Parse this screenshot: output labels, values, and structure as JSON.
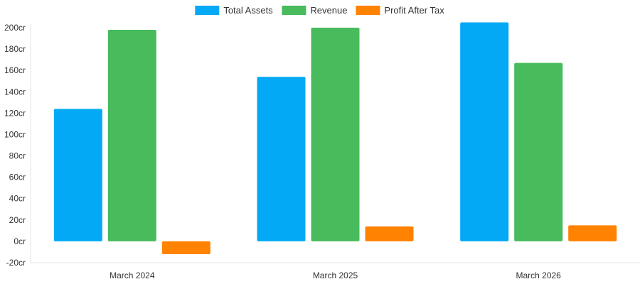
{
  "chart_data": {
    "type": "bar",
    "categories": [
      "March 2024",
      "March 2025",
      "March 2026"
    ],
    "series": [
      {
        "name": "Total Assets",
        "color": "#03A9F4",
        "values": [
          124,
          154,
          205
        ]
      },
      {
        "name": "Revenue",
        "color": "#48BB5C",
        "values": [
          198,
          200,
          167
        ]
      },
      {
        "name": "Profit After Tax",
        "color": "#FF8200",
        "values": [
          -12,
          14,
          15
        ]
      }
    ],
    "ylim": [
      -20,
      200
    ],
    "y_ticks": [
      {
        "value": -20,
        "label": "-20cr"
      },
      {
        "value": 0,
        "label": "0cr"
      },
      {
        "value": 20,
        "label": "20cr"
      },
      {
        "value": 40,
        "label": "40cr"
      },
      {
        "value": 60,
        "label": "60cr"
      },
      {
        "value": 80,
        "label": "80cr"
      },
      {
        "value": 100,
        "label": "100cr"
      },
      {
        "value": 120,
        "label": "120cr"
      },
      {
        "value": 140,
        "label": "140cr"
      },
      {
        "value": 160,
        "label": "160cr"
      },
      {
        "value": 180,
        "label": "180cr"
      },
      {
        "value": 200,
        "label": "200cr"
      }
    ],
    "legend_position": "top-center",
    "grid": false,
    "xlabel": "",
    "ylabel": ""
  }
}
